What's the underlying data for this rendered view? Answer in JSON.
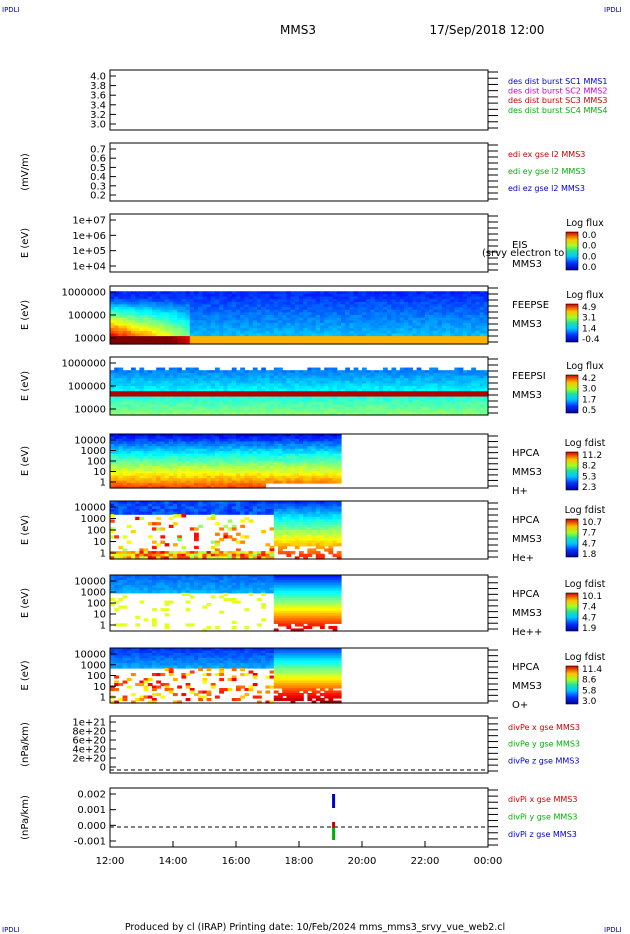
{
  "header": {
    "corner_tl": "IPDLI",
    "corner_tr": "IPDLI",
    "corner_bl": "IPDLI",
    "corner_br": "IPDLI",
    "spacecraft": "MMS3",
    "datetime": "17/Sep/2018 12:00"
  },
  "footer": {
    "text": "Produced by cl (IRAP)   Printing date: 10/Feb/2024   mms_mms3_srvy_vue_web2.cl"
  },
  "colors": {
    "blue": "#0000cc",
    "magenta": "#cc00cc",
    "red": "#cc0000",
    "green": "#00b000"
  },
  "chart_data": {
    "type": "multi-panel time series (line + spectrogram)",
    "x_ticks": [
      "12:00",
      "14:00",
      "16:00",
      "18:00",
      "20:00",
      "22:00",
      "00:00"
    ],
    "x_range_hours": [
      12,
      24
    ],
    "panels": [
      {
        "id": "p1",
        "type": "line",
        "yticks": [
          "4.0",
          "3.8",
          "3.6",
          "3.4",
          "3.2",
          "3.0"
        ],
        "legend": [
          {
            "label": "des dist burst SC1 MMS1",
            "color": "#0000cc"
          },
          {
            "label": "des dist burst SC2 MMS2",
            "color": "#cc00cc"
          },
          {
            "label": "des dist burst SC3 MMS3",
            "color": "#cc0000"
          },
          {
            "label": "des dist burst SC4 MMS4",
            "color": "#00b000"
          }
        ]
      },
      {
        "id": "p2",
        "type": "line",
        "ylabel": "(mV/m)",
        "yticks": [
          "0.7",
          "0.6",
          "0.5",
          "0.4",
          "0.3",
          "0.2"
        ],
        "legend": [
          {
            "label": "edi ex gse l2 MMS3",
            "color": "#cc0000"
          },
          {
            "label": "edi ey gse l2 MMS3",
            "color": "#00b000"
          },
          {
            "label": "edi ez gse l2 MMS3",
            "color": "#0000cc"
          }
        ]
      },
      {
        "id": "p3",
        "type": "spectrogram",
        "ylabel": "E (eV)",
        "yticks": [
          "1e+07",
          "1e+06",
          "1e+05",
          "1e+04"
        ],
        "labels": [
          "EIS",
          "MMS3"
        ],
        "overlay_text": "(srvy electron to",
        "cbar_title": "Log flux",
        "cbar_ticks": [
          "0.0",
          "0.0",
          "0.0",
          "0.0"
        ]
      },
      {
        "id": "p4",
        "type": "spectrogram",
        "ylabel": "E (eV)",
        "yticks": [
          "1000000",
          "100000",
          "10000"
        ],
        "labels": [
          "FEEPSE",
          "MMS3"
        ],
        "cbar_title": "Log flux",
        "cbar_ticks": [
          "4.9",
          "3.1",
          "1.4",
          "-0.4"
        ]
      },
      {
        "id": "p5",
        "type": "spectrogram",
        "ylabel": "E (eV)",
        "yticks": [
          "1000000",
          "100000",
          "10000"
        ],
        "labels": [
          "FEEPSI",
          "MMS3"
        ],
        "cbar_title": "Log flux",
        "cbar_ticks": [
          "4.2",
          "3.0",
          "1.7",
          "0.5"
        ]
      },
      {
        "id": "p6",
        "type": "spectrogram",
        "ylabel": "E (eV)",
        "yticks": [
          "10000",
          "1000",
          "100",
          "10",
          "1"
        ],
        "labels": [
          "HPCA",
          "MMS3",
          "H+"
        ],
        "cbar_title": "Log fdist",
        "cbar_ticks": [
          "11.2",
          "8.2",
          "5.3",
          "2.3"
        ]
      },
      {
        "id": "p7",
        "type": "spectrogram",
        "ylabel": "E (eV)",
        "yticks": [
          "10000",
          "1000",
          "100",
          "10",
          "1"
        ],
        "labels": [
          "HPCA",
          "MMS3",
          "He+"
        ],
        "cbar_title": "Log fdist",
        "cbar_ticks": [
          "10.7",
          "7.7",
          "4.7",
          "1.8"
        ]
      },
      {
        "id": "p8",
        "type": "spectrogram",
        "ylabel": "E (eV)",
        "yticks": [
          "10000",
          "1000",
          "100",
          "10",
          "1"
        ],
        "labels": [
          "HPCA",
          "MMS3",
          "He++"
        ],
        "cbar_title": "Log fdist",
        "cbar_ticks": [
          "10.1",
          "7.4",
          "4.7",
          "1.9"
        ]
      },
      {
        "id": "p9",
        "type": "spectrogram",
        "ylabel": "E (eV)",
        "yticks": [
          "10000",
          "1000",
          "100",
          "10",
          "1"
        ],
        "labels": [
          "HPCA",
          "MMS3",
          "O+"
        ],
        "cbar_title": "Log fdist",
        "cbar_ticks": [
          "11.4",
          "8.6",
          "5.8",
          "3.0"
        ]
      },
      {
        "id": "p10",
        "type": "line",
        "ylabel": "(nPa/km)",
        "yticks": [
          "1e+21",
          "8e+20",
          "6e+20",
          "4e+20",
          "2e+20",
          "0"
        ],
        "legend": [
          {
            "label": "divPe x gse MMS3",
            "color": "#cc0000"
          },
          {
            "label": "divPe y gse MMS3",
            "color": "#00b000"
          },
          {
            "label": "divPe z gse MMS3",
            "color": "#0000cc"
          }
        ]
      },
      {
        "id": "p11",
        "type": "line",
        "ylabel": "(nPa/km)",
        "yticks": [
          "0.002",
          "0.001",
          "0.000",
          "-0.001"
        ],
        "legend": [
          {
            "label": "divPi x gse MMS3",
            "color": "#cc0000"
          },
          {
            "label": "divPi y gse MMS3",
            "color": "#00b000"
          },
          {
            "label": "divPi z gse MMS3",
            "color": "#0000cc"
          }
        ]
      }
    ]
  }
}
